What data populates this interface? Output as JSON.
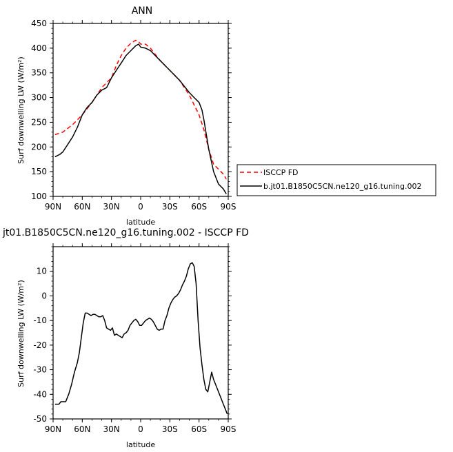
{
  "chart_data": [
    {
      "type": "line",
      "title": "ANN",
      "xlabel": "latitude",
      "ylabel": "Surf downwelling LW (W/m²)",
      "xlim": [
        90,
        -90
      ],
      "ylim": [
        100,
        450
      ],
      "x_ticks": [
        90,
        60,
        30,
        0,
        -30,
        -60,
        -90
      ],
      "x_tick_labels": [
        "90N",
        "60N",
        "30N",
        "0",
        "30S",
        "60S",
        "90S"
      ],
      "y_ticks": [
        100,
        150,
        200,
        250,
        300,
        350,
        400,
        450
      ],
      "legend_placement": "outside-right",
      "series": [
        {
          "name": "ISCCP FD",
          "color": "#ff0000",
          "dash": "dashed",
          "x": [
            88,
            80,
            70,
            60,
            50,
            40,
            30,
            25,
            20,
            15,
            10,
            5,
            2,
            0,
            -5,
            -10,
            -20,
            -30,
            -40,
            -50,
            -55,
            -60,
            -65,
            -70,
            -75,
            -80,
            -85,
            -88
          ],
          "y": [
            225,
            230,
            245,
            265,
            290,
            320,
            340,
            365,
            385,
            400,
            410,
            416,
            413,
            408,
            408,
            400,
            375,
            355,
            335,
            305,
            285,
            265,
            235,
            195,
            165,
            155,
            145,
            135
          ]
        },
        {
          "name": "b.jt01.B1850C5CN.ne120_g16.tuning.002",
          "color": "#000000",
          "dash": "solid",
          "x": [
            88,
            83,
            80,
            75,
            70,
            65,
            60,
            55,
            50,
            45,
            40,
            35,
            30,
            25,
            20,
            15,
            10,
            5,
            2,
            0,
            -5,
            -10,
            -20,
            -30,
            -40,
            -50,
            -55,
            -60,
            -63,
            -65,
            -70,
            -75,
            -80,
            -85,
            -88
          ],
          "y": [
            180,
            185,
            190,
            205,
            220,
            240,
            265,
            280,
            290,
            305,
            315,
            320,
            340,
            355,
            370,
            385,
            395,
            405,
            408,
            402,
            400,
            395,
            375,
            355,
            335,
            310,
            300,
            290,
            275,
            255,
            195,
            150,
            125,
            115,
            105
          ]
        }
      ]
    },
    {
      "type": "line",
      "title": "jt01.B1850C5CN.ne120_g16.tuning.002 - ISCCP FD",
      "xlabel": "latitude",
      "ylabel": "Surf downwelling LW (W/m²)",
      "xlim": [
        90,
        -90
      ],
      "ylim": [
        -50,
        20
      ],
      "x_ticks": [
        90,
        60,
        30,
        0,
        -30,
        -60,
        -90
      ],
      "x_tick_labels": [
        "90N",
        "60N",
        "30N",
        "0",
        "30S",
        "60S",
        "90S"
      ],
      "y_ticks": [
        -50,
        -40,
        -30,
        -20,
        -10,
        0,
        10
      ],
      "series": [
        {
          "color": "#000000",
          "dash": "solid",
          "x": [
            88,
            86,
            84,
            82,
            80,
            77,
            74,
            71,
            68,
            65,
            63,
            61,
            59,
            57,
            55,
            53,
            51,
            49,
            47,
            45,
            43,
            41,
            39,
            37,
            35,
            33,
            31,
            29,
            27,
            25,
            23,
            21,
            19,
            17,
            15,
            13,
            11,
            9,
            7,
            5,
            3,
            1,
            -1,
            -3,
            -5,
            -7,
            -9,
            -11,
            -13,
            -15,
            -17,
            -19,
            -21,
            -23,
            -25,
            -27,
            -29,
            -31,
            -33,
            -35,
            -37,
            -39,
            -41,
            -43,
            -45,
            -47,
            -49,
            -51,
            -53,
            -55,
            -57,
            -59,
            -61,
            -63,
            -65,
            -67,
            -69,
            -71,
            -73,
            -75,
            -77,
            -79,
            -81,
            -83,
            -85,
            -87,
            -89
          ],
          "y": [
            -44,
            -44,
            -44,
            -43,
            -43,
            -43,
            -40,
            -36,
            -31,
            -27,
            -23,
            -17,
            -11,
            -7,
            -7,
            -7.5,
            -8,
            -7.5,
            -7.5,
            -8,
            -8.5,
            -8.5,
            -8,
            -10,
            -13,
            -13.5,
            -14,
            -13,
            -16,
            -15.5,
            -16,
            -16.5,
            -17,
            -15.5,
            -15,
            -14,
            -12,
            -11,
            -10,
            -9.5,
            -10.5,
            -12,
            -12,
            -11,
            -10,
            -9.5,
            -9,
            -9.5,
            -10.5,
            -12,
            -13.5,
            -14,
            -13.5,
            -13.5,
            -10,
            -8,
            -5,
            -3,
            -1.5,
            -0.5,
            0,
            1,
            2.5,
            4.5,
            6,
            8,
            11,
            13,
            13.5,
            12,
            5,
            -10,
            -21,
            -28,
            -34,
            -38,
            -39,
            -35,
            -31,
            -34,
            -36,
            -38,
            -40,
            -42,
            -44,
            -46,
            -48
          ]
        }
      ]
    }
  ]
}
